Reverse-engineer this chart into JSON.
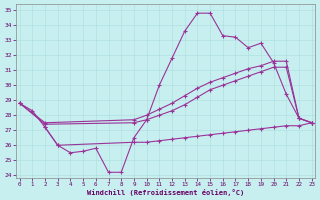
{
  "xlabel": "Windchill (Refroidissement éolien,°C)",
  "bg_color": "#c8efef",
  "line_color": "#993399",
  "xlim_min": -0.3,
  "xlim_max": 23.3,
  "ylim_min": 23.8,
  "ylim_max": 35.4,
  "yticks": [
    24,
    25,
    26,
    27,
    28,
    29,
    30,
    31,
    32,
    33,
    34,
    35
  ],
  "xticks": [
    0,
    1,
    2,
    3,
    4,
    5,
    6,
    7,
    8,
    9,
    10,
    11,
    12,
    13,
    14,
    15,
    16,
    17,
    18,
    19,
    20,
    21,
    22,
    23
  ],
  "line1_x": [
    0,
    1,
    2,
    3,
    4,
    5,
    6,
    7,
    8,
    9,
    10,
    11,
    12,
    13,
    14,
    15,
    16,
    17,
    18,
    19,
    20,
    21,
    22,
    23
  ],
  "line1_y": [
    28.8,
    28.3,
    27.2,
    26.0,
    25.5,
    25.6,
    25.8,
    24.2,
    24.2,
    26.5,
    27.7,
    30.0,
    31.8,
    33.6,
    34.8,
    34.8,
    33.3,
    33.2,
    32.5,
    32.8,
    31.5,
    29.4,
    27.8,
    27.5
  ],
  "line2_x": [
    0,
    2,
    9,
    10,
    11,
    12,
    13,
    14,
    15,
    16,
    17,
    18,
    19,
    20,
    21,
    22,
    23
  ],
  "line2_y": [
    28.8,
    27.5,
    27.7,
    28.0,
    28.4,
    28.8,
    29.3,
    29.8,
    30.2,
    30.5,
    30.8,
    31.1,
    31.3,
    31.6,
    31.6,
    27.8,
    27.5
  ],
  "line3_x": [
    0,
    2,
    9,
    10,
    11,
    12,
    13,
    14,
    15,
    16,
    17,
    18,
    19,
    20,
    21,
    22,
    23
  ],
  "line3_y": [
    28.8,
    27.4,
    27.5,
    27.7,
    28.0,
    28.3,
    28.7,
    29.2,
    29.7,
    30.0,
    30.3,
    30.6,
    30.9,
    31.2,
    31.2,
    27.8,
    27.5
  ],
  "line4_x": [
    2,
    3,
    9,
    10,
    11,
    12,
    13,
    14,
    15,
    16,
    17,
    18,
    19,
    20,
    21,
    22,
    23
  ],
  "line4_y": [
    27.2,
    26.0,
    26.2,
    26.2,
    26.3,
    26.4,
    26.5,
    26.6,
    26.7,
    26.8,
    26.9,
    27.0,
    27.1,
    27.2,
    27.3,
    27.3,
    27.5
  ]
}
